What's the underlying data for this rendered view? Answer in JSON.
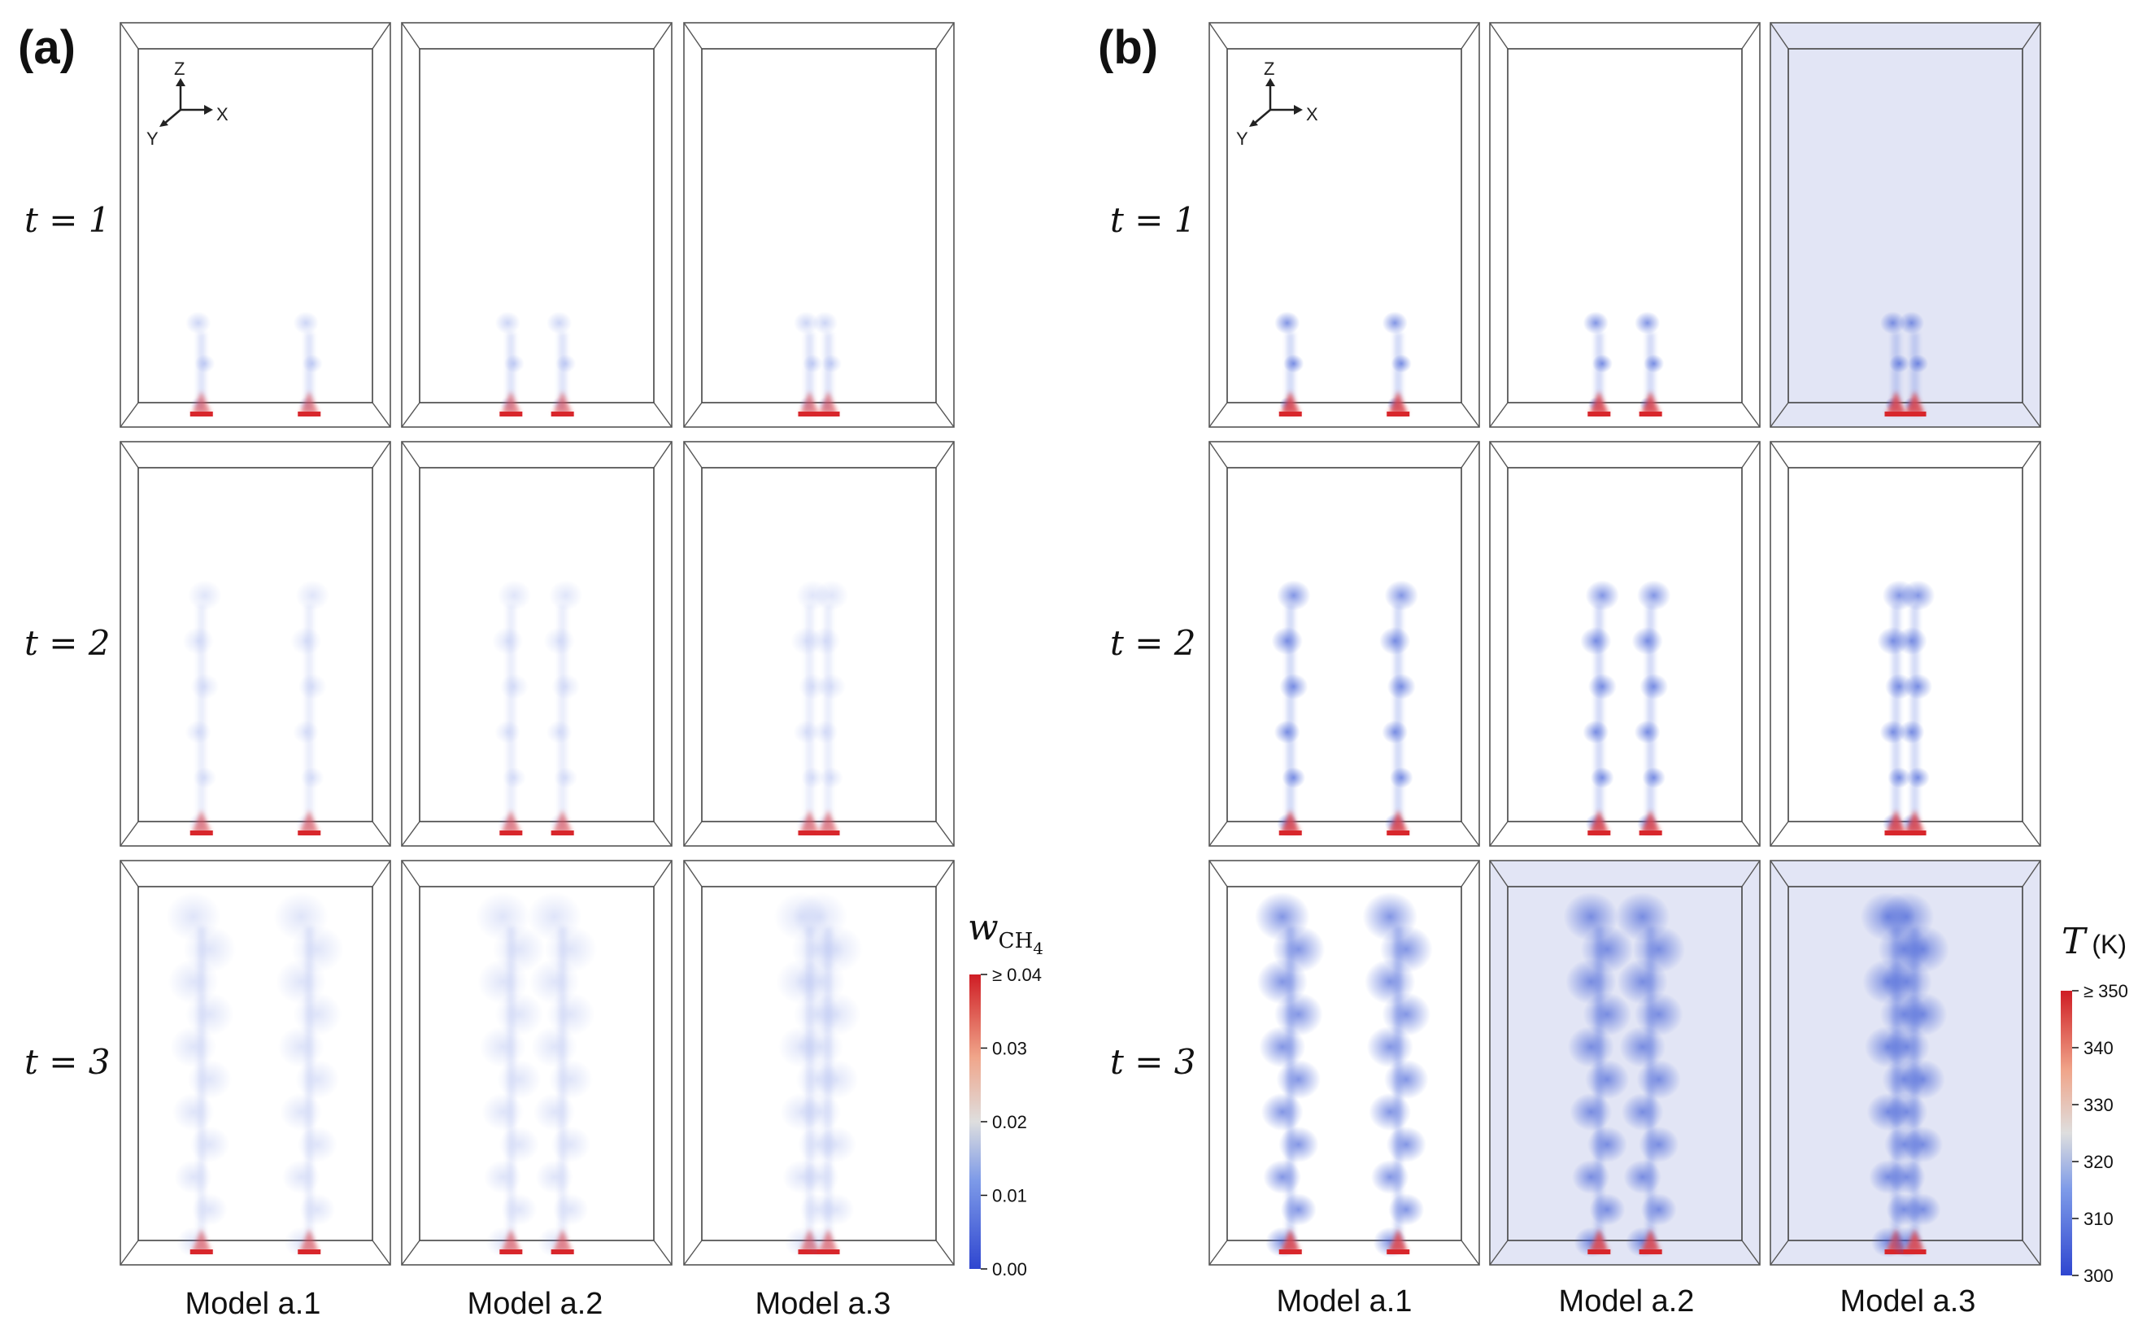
{
  "panels": [
    {
      "label": "(a)",
      "times": [
        "t = 1",
        "t = 2",
        "t = 3"
      ],
      "models": [
        "Model a.1",
        "Model a.2",
        "Model a.3"
      ],
      "axes": {
        "z": "Z",
        "x": "X",
        "y": "Y"
      },
      "colorbar": {
        "symbol": "w",
        "subscript": "CH",
        "subscript2": "4",
        "unit": "",
        "ticks": [
          "≥ 0.04",
          "0.03",
          "0.02",
          "0.01",
          "0.00"
        ]
      }
    },
    {
      "label": "(b)",
      "times": [
        "t = 1",
        "t = 2",
        "t = 3"
      ],
      "models": [
        "Model a.1",
        "Model a.2",
        "Model a.3"
      ],
      "axes": {
        "z": "Z",
        "x": "X",
        "y": "Y"
      },
      "colorbar": {
        "symbol": "T",
        "subscript": "",
        "subscript2": "",
        "unit": "(K)",
        "ticks": [
          "≥ 350",
          "340",
          "330",
          "320",
          "310",
          "300"
        ]
      }
    }
  ],
  "colors": {
    "cold": "#3a55d8",
    "neutral": "#dcdfe8",
    "hot": "#d8262b",
    "frame": "#444444",
    "tint": "#dfe2f4"
  }
}
